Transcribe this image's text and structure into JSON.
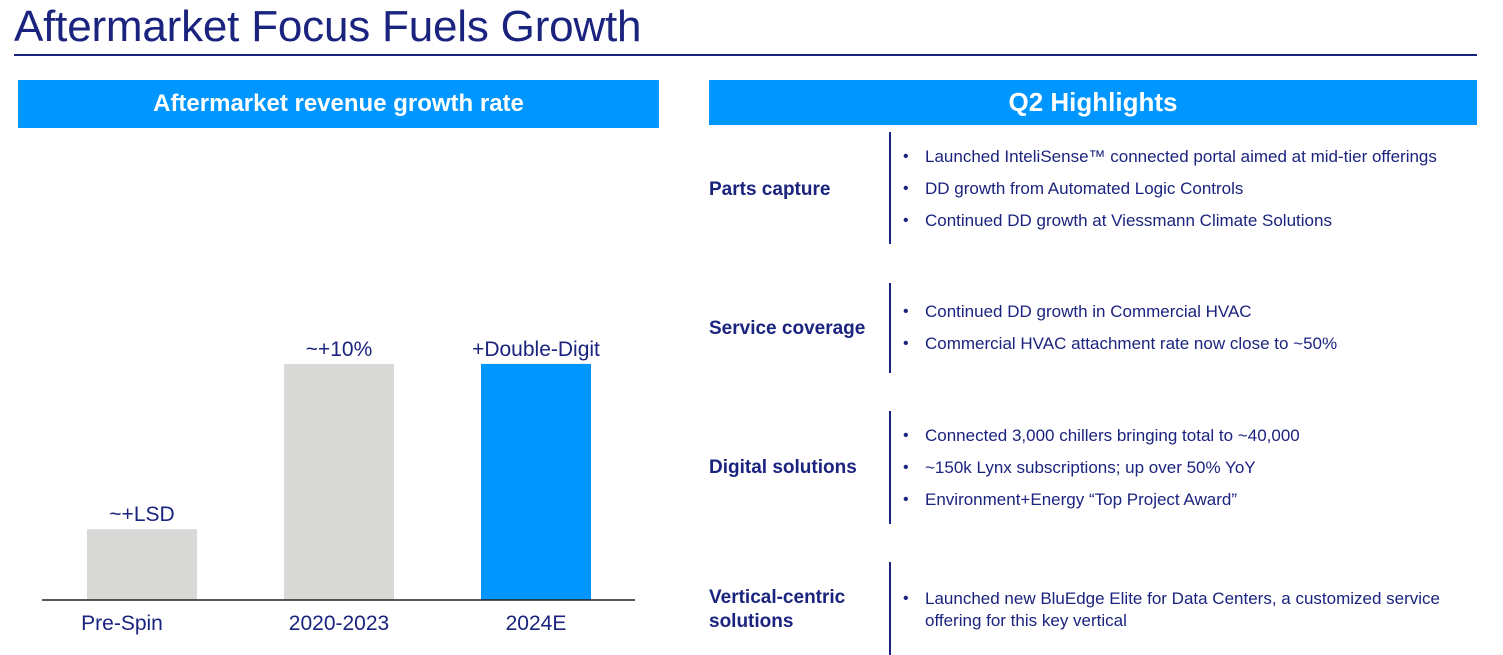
{
  "page": {
    "title": "Aftermarket Focus Fuels Growth"
  },
  "left_panel": {
    "header": "Aftermarket revenue growth rate"
  },
  "right_panel": {
    "header": "Q2 Highlights",
    "sections": [
      {
        "label": "Parts capture",
        "bullets": [
          "Launched InteliSense™ connected portal aimed at mid-tier offerings",
          "DD growth from Automated Logic Controls",
          "Continued DD growth at Viessmann Climate Solutions"
        ]
      },
      {
        "label": "Service coverage",
        "bullets": [
          "Continued DD growth in Commercial HVAC",
          "Commercial HVAC attachment rate now close to ~50%"
        ]
      },
      {
        "label": "Digital solutions",
        "bullets": [
          "Connected 3,000 chillers bringing total to ~40,000",
          "~150k Lynx subscriptions; up over 50% YoY",
          "Environment+Energy “Top Project Award”"
        ]
      },
      {
        "label": "Vertical-centric solutions",
        "bullets": [
          "Launched new BluEdge Elite for Data Centers, a customized service offering for this key vertical"
        ]
      }
    ]
  },
  "chart_data": {
    "type": "bar",
    "categories": [
      "Pre-Spin",
      "2020-2023",
      "2024E"
    ],
    "values": [
      3,
      10,
      10
    ],
    "data_labels": [
      "~+LSD",
      "~+10%",
      "+Double-Digit"
    ],
    "colors": [
      "#d9d9d7",
      "#d9d9d7",
      "#0096ff"
    ],
    "title": "",
    "xlabel": "",
    "ylabel": "",
    "ylim": [
      0,
      12
    ],
    "grid": false,
    "legend": "none",
    "y_axis_visible": false
  }
}
